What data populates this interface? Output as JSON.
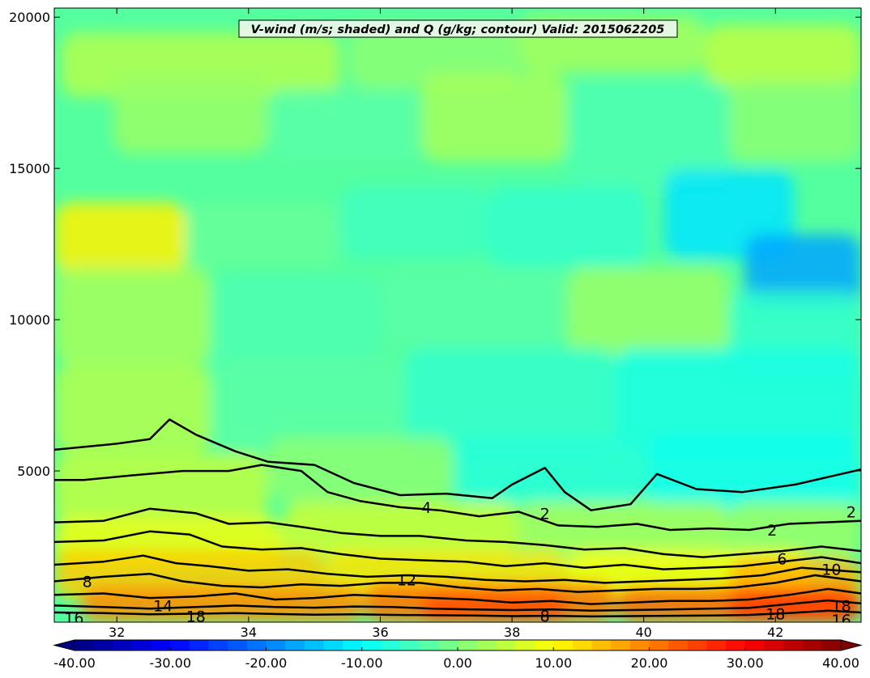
{
  "chart_data": {
    "type": "heatmap",
    "title": "V-wind (m/s; shaded) and Q (g/kg; contour) Valid: 2015062205",
    "xlabel": "",
    "ylabel": "",
    "xlim": [
      31.05,
      43.3
    ],
    "ylim": [
      0,
      20300
    ],
    "x_ticks": [
      32,
      34,
      36,
      38,
      40,
      42
    ],
    "x_tick_labels": [
      "32",
      "34",
      "36",
      "38",
      "40",
      "42"
    ],
    "y_ticks": [
      5000,
      10000,
      15000,
      20000
    ],
    "y_tick_labels": [
      "5000",
      "10000",
      "15000",
      "20000"
    ],
    "shaded_field": "V-wind (m/s)",
    "contour_field": "Q (g/kg)",
    "contour_labels": [
      {
        "text": "4",
        "x": 36.7,
        "y": 3800
      },
      {
        "text": "2",
        "x": 38.5,
        "y": 3600
      },
      {
        "text": "2",
        "x": 41.95,
        "y": 3050
      },
      {
        "text": "2",
        "x": 43.15,
        "y": 3650
      },
      {
        "text": "6",
        "x": 42.1,
        "y": 2100
      },
      {
        "text": "10",
        "x": 42.85,
        "y": 1750
      },
      {
        "text": "8",
        "x": 31.55,
        "y": 1350
      },
      {
        "text": "12",
        "x": 36.4,
        "y": 1400
      },
      {
        "text": "14",
        "x": 32.7,
        "y": 550
      },
      {
        "text": "18",
        "x": 33.2,
        "y": 200
      },
      {
        "text": "16",
        "x": 31.35,
        "y": 150
      },
      {
        "text": "8",
        "x": 38.5,
        "y": 220
      },
      {
        "text": "18",
        "x": 42.0,
        "y": 280
      },
      {
        "text": "18",
        "x": 43.0,
        "y": 550
      },
      {
        "text": "16",
        "x": 43.0,
        "y": 80
      }
    ],
    "contours": [
      {
        "level": 2,
        "points": [
          [
            31.05,
            5700
          ],
          [
            32.0,
            5900
          ],
          [
            32.5,
            6050
          ],
          [
            32.8,
            6700
          ],
          [
            33.2,
            6200
          ],
          [
            33.8,
            5650
          ],
          [
            34.3,
            5300
          ],
          [
            35.0,
            5200
          ],
          [
            35.6,
            4600
          ],
          [
            36.3,
            4200
          ],
          [
            37.0,
            4250
          ],
          [
            37.7,
            4100
          ],
          [
            38.0,
            4550
          ],
          [
            38.5,
            5100
          ],
          [
            38.8,
            4300
          ],
          [
            39.2,
            3700
          ],
          [
            39.8,
            3900
          ],
          [
            40.2,
            4900
          ],
          [
            40.8,
            4400
          ],
          [
            41.5,
            4300
          ],
          [
            42.3,
            4550
          ],
          [
            43.3,
            5050
          ]
        ]
      },
      {
        "level": 4,
        "points": [
          [
            31.05,
            4700
          ],
          [
            31.5,
            4700
          ],
          [
            32.2,
            4850
          ],
          [
            33.0,
            5000
          ],
          [
            33.7,
            5000
          ],
          [
            34.2,
            5200
          ],
          [
            34.8,
            5000
          ],
          [
            35.2,
            4300
          ],
          [
            35.7,
            4000
          ],
          [
            36.3,
            3800
          ],
          [
            36.9,
            3700
          ],
          [
            37.5,
            3500
          ],
          [
            38.1,
            3650
          ],
          [
            38.7,
            3200
          ],
          [
            39.3,
            3150
          ],
          [
            39.9,
            3250
          ],
          [
            40.4,
            3050
          ],
          [
            41.0,
            3100
          ],
          [
            41.6,
            3050
          ],
          [
            42.2,
            3250
          ],
          [
            43.3,
            3350
          ]
        ]
      },
      {
        "level": 6,
        "points": [
          [
            31.05,
            3300
          ],
          [
            31.8,
            3350
          ],
          [
            32.5,
            3750
          ],
          [
            33.2,
            3600
          ],
          [
            33.7,
            3250
          ],
          [
            34.3,
            3300
          ],
          [
            34.8,
            3150
          ],
          [
            35.4,
            2950
          ],
          [
            36.0,
            2850
          ],
          [
            36.6,
            2850
          ],
          [
            37.3,
            2700
          ],
          [
            37.9,
            2650
          ],
          [
            38.5,
            2550
          ],
          [
            39.1,
            2400
          ],
          [
            39.7,
            2450
          ],
          [
            40.3,
            2250
          ],
          [
            40.9,
            2150
          ],
          [
            41.5,
            2250
          ],
          [
            42.1,
            2350
          ],
          [
            42.7,
            2500
          ],
          [
            43.3,
            2350
          ]
        ]
      },
      {
        "level": 8,
        "points": [
          [
            31.05,
            2650
          ],
          [
            31.8,
            2700
          ],
          [
            32.5,
            3000
          ],
          [
            33.1,
            2900
          ],
          [
            33.6,
            2500
          ],
          [
            34.2,
            2400
          ],
          [
            34.8,
            2450
          ],
          [
            35.4,
            2250
          ],
          [
            36.0,
            2100
          ],
          [
            36.6,
            2050
          ],
          [
            37.3,
            2000
          ],
          [
            37.9,
            1850
          ],
          [
            38.5,
            1950
          ],
          [
            39.1,
            1800
          ],
          [
            39.7,
            1900
          ],
          [
            40.3,
            1750
          ],
          [
            40.9,
            1800
          ],
          [
            41.5,
            1850
          ],
          [
            42.1,
            2000
          ],
          [
            42.7,
            2150
          ],
          [
            43.3,
            1950
          ]
        ]
      },
      {
        "level": 10,
        "points": [
          [
            31.05,
            1900
          ],
          [
            31.8,
            2000
          ],
          [
            32.4,
            2200
          ],
          [
            32.9,
            1950
          ],
          [
            33.4,
            1850
          ],
          [
            34.0,
            1700
          ],
          [
            34.6,
            1750
          ],
          [
            35.2,
            1600
          ],
          [
            35.8,
            1500
          ],
          [
            36.4,
            1550
          ],
          [
            37.0,
            1500
          ],
          [
            37.6,
            1400
          ],
          [
            38.2,
            1350
          ],
          [
            38.8,
            1400
          ],
          [
            39.4,
            1300
          ],
          [
            40.0,
            1350
          ],
          [
            40.6,
            1400
          ],
          [
            41.2,
            1450
          ],
          [
            41.8,
            1550
          ],
          [
            42.4,
            1800
          ],
          [
            43.3,
            1650
          ]
        ]
      },
      {
        "level": 12,
        "points": [
          [
            31.05,
            1350
          ],
          [
            31.8,
            1500
          ],
          [
            32.5,
            1600
          ],
          [
            33.0,
            1350
          ],
          [
            33.6,
            1200
          ],
          [
            34.2,
            1150
          ],
          [
            34.8,
            1250
          ],
          [
            35.4,
            1200
          ],
          [
            36.0,
            1300
          ],
          [
            36.6,
            1300
          ],
          [
            37.2,
            1150
          ],
          [
            37.8,
            1050
          ],
          [
            38.4,
            1100
          ],
          [
            39.0,
            1000
          ],
          [
            39.6,
            1050
          ],
          [
            40.2,
            1100
          ],
          [
            40.8,
            1100
          ],
          [
            41.4,
            1150
          ],
          [
            42.0,
            1300
          ],
          [
            42.6,
            1550
          ],
          [
            43.3,
            1350
          ]
        ]
      },
      {
        "level": 14,
        "points": [
          [
            31.05,
            900
          ],
          [
            31.8,
            950
          ],
          [
            32.5,
            800
          ],
          [
            33.2,
            850
          ],
          [
            33.8,
            950
          ],
          [
            34.4,
            750
          ],
          [
            35.0,
            800
          ],
          [
            35.6,
            900
          ],
          [
            36.2,
            850
          ],
          [
            36.8,
            800
          ],
          [
            37.4,
            750
          ],
          [
            38.0,
            650
          ],
          [
            38.6,
            700
          ],
          [
            39.2,
            600
          ],
          [
            39.8,
            650
          ],
          [
            40.4,
            700
          ],
          [
            41.0,
            700
          ],
          [
            41.6,
            750
          ],
          [
            42.2,
            900
          ],
          [
            42.8,
            1100
          ],
          [
            43.3,
            950
          ]
        ]
      },
      {
        "level": 16,
        "points": [
          [
            31.05,
            550
          ],
          [
            31.8,
            500
          ],
          [
            32.5,
            450
          ],
          [
            33.2,
            500
          ],
          [
            33.8,
            550
          ],
          [
            34.4,
            500
          ],
          [
            35.0,
            480
          ],
          [
            35.6,
            520
          ],
          [
            36.2,
            500
          ],
          [
            36.8,
            450
          ],
          [
            37.4,
            420
          ],
          [
            38.0,
            400
          ],
          [
            38.6,
            420
          ],
          [
            39.2,
            380
          ],
          [
            39.8,
            400
          ],
          [
            40.4,
            420
          ],
          [
            41.0,
            450
          ],
          [
            41.6,
            470
          ],
          [
            42.2,
            600
          ],
          [
            42.8,
            720
          ],
          [
            43.3,
            620
          ]
        ]
      },
      {
        "level": 18,
        "points": [
          [
            31.05,
            320
          ],
          [
            31.8,
            300
          ],
          [
            32.5,
            260
          ],
          [
            33.2,
            280
          ],
          [
            33.8,
            300
          ],
          [
            34.4,
            270
          ],
          [
            35.0,
            250
          ],
          [
            35.6,
            260
          ],
          [
            36.2,
            240
          ],
          [
            36.8,
            230
          ],
          [
            37.4,
            220
          ],
          [
            38.0,
            200
          ],
          [
            38.6,
            210
          ],
          [
            39.2,
            190
          ],
          [
            39.8,
            200
          ],
          [
            40.4,
            210
          ],
          [
            41.0,
            220
          ],
          [
            41.6,
            240
          ],
          [
            42.2,
            300
          ],
          [
            42.8,
            380
          ],
          [
            43.3,
            320
          ]
        ]
      }
    ],
    "colorbar": {
      "range": [
        -40,
        40
      ],
      "extend": "both",
      "ticks": [
        -40,
        -30,
        -20,
        -10,
        0,
        10,
        20,
        30,
        40
      ],
      "tick_labels": [
        "-40.00",
        "-30.00",
        "-20.00",
        "-10.00",
        "0.00",
        "10.00",
        "20.00",
        "30.00",
        "40.00"
      ],
      "colormap": "jet"
    }
  }
}
